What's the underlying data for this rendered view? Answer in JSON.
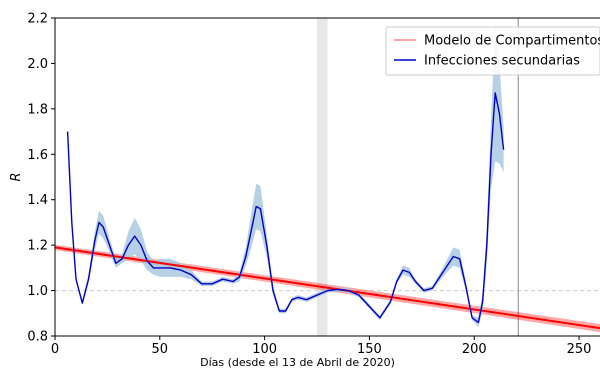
{
  "chart_data": {
    "type": "line",
    "title": "",
    "xlabel": "Días (desde el 13 de Abril de 2020)",
    "ylabel": "R",
    "xlim": [
      0,
      260
    ],
    "ylim": [
      0.8,
      2.2
    ],
    "xticks": [
      0,
      50,
      100,
      150,
      200,
      250
    ],
    "xtick_labels": [
      "0",
      "50",
      "100",
      "150",
      "200",
      "250"
    ],
    "yticks": [
      0.8,
      1.0,
      1.2,
      1.4,
      1.6,
      1.8,
      2.0,
      2.2
    ],
    "ytick_labels": [
      "0.8",
      "1.0",
      "1.2",
      "1.4",
      "1.6",
      "1.8",
      "2.0",
      "2.2"
    ],
    "grid": false,
    "reference_line_y": 1.0,
    "vertical_line_x": 221,
    "shaded_band_x": [
      125,
      130
    ],
    "legend_position": "top-right",
    "series": [
      {
        "name": "Modelo de Compartimentos",
        "color": "#ff0000",
        "band_color": "#ff0000",
        "x": [
          0,
          260
        ],
        "y": [
          1.19,
          0.835
        ],
        "band_halfwidth": [
          0.012,
          0.018
        ]
      },
      {
        "name": "Infecciones secundarias",
        "color": "#0000cc",
        "band_color": "#a9c8e0",
        "x": [
          6,
          8,
          10,
          13,
          16,
          19,
          21,
          23,
          26,
          29,
          32,
          35,
          38,
          41,
          44,
          47,
          50,
          55,
          60,
          65,
          70,
          75,
          80,
          85,
          88,
          91,
          94,
          96,
          98,
          101,
          104,
          107,
          110,
          113,
          116,
          120,
          125,
          130,
          135,
          140,
          145,
          150,
          155,
          160,
          163,
          166,
          169,
          172,
          176,
          180,
          185,
          190,
          193,
          196,
          199,
          202,
          204,
          206,
          208,
          210,
          212,
          214
        ],
        "y": [
          1.7,
          1.3,
          1.05,
          0.945,
          1.05,
          1.22,
          1.3,
          1.28,
          1.2,
          1.12,
          1.14,
          1.2,
          1.24,
          1.2,
          1.13,
          1.1,
          1.1,
          1.1,
          1.09,
          1.07,
          1.03,
          1.03,
          1.05,
          1.04,
          1.06,
          1.15,
          1.28,
          1.37,
          1.36,
          1.2,
          1.0,
          0.91,
          0.91,
          0.96,
          0.97,
          0.96,
          0.98,
          1.0,
          1.005,
          1.0,
          0.98,
          0.93,
          0.88,
          0.95,
          1.04,
          1.09,
          1.08,
          1.04,
          1.0,
          1.01,
          1.08,
          1.15,
          1.14,
          1.02,
          0.88,
          0.86,
          0.95,
          1.2,
          1.6,
          1.87,
          1.78,
          1.62
        ],
        "band_halfwidth": [
          0.0,
          0.0,
          0.0,
          0.01,
          0.02,
          0.04,
          0.05,
          0.05,
          0.03,
          0.02,
          0.02,
          0.06,
          0.08,
          0.07,
          0.04,
          0.03,
          0.04,
          0.04,
          0.03,
          0.02,
          0.01,
          0.01,
          0.01,
          0.01,
          0.02,
          0.04,
          0.08,
          0.1,
          0.1,
          0.05,
          0.02,
          0.01,
          0.01,
          0.01,
          0.01,
          0.01,
          0.01,
          0.01,
          0.01,
          0.01,
          0.01,
          0.01,
          0.01,
          0.01,
          0.01,
          0.02,
          0.02,
          0.01,
          0.01,
          0.01,
          0.02,
          0.04,
          0.04,
          0.02,
          0.01,
          0.02,
          0.04,
          0.08,
          0.15,
          0.3,
          0.22,
          0.1
        ]
      }
    ]
  }
}
